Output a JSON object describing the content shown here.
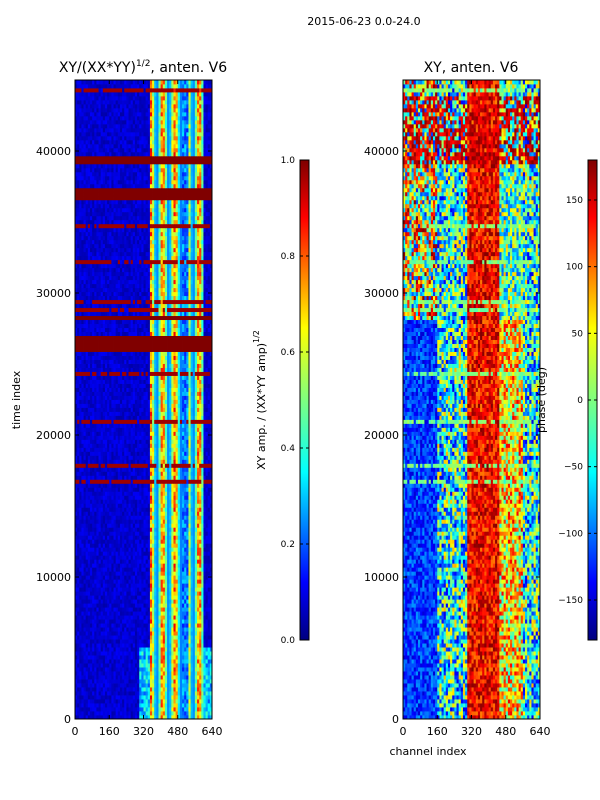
{
  "figure_title": "2015-06-23 0.0-24.0",
  "colors": {
    "jet": [
      "#00007f",
      "#0000ff",
      "#007fff",
      "#00ffff",
      "#7fff7f",
      "#ffff00",
      "#ff7f00",
      "#ff0000",
      "#7f0000"
    ]
  },
  "chart_data": [
    {
      "type": "heatmap",
      "title_main": "XY/(XX*YY)",
      "title_exp": "1/2",
      "title_suffix": ", anten. V6",
      "xlabel": "",
      "ylabel": "time index",
      "xlim": [
        0,
        640
      ],
      "ylim": [
        0,
        45000
      ],
      "xticks": [
        "0",
        "160",
        "320",
        "480",
        "640"
      ],
      "yticks": [
        "0",
        "10000",
        "20000",
        "30000",
        "40000"
      ],
      "colorbar": {
        "label_main": "XY amp. / (XX*YY amp)",
        "label_exp": "1/2",
        "range": [
          0.0,
          1.0
        ],
        "ticks": [
          "0.0",
          "0.2",
          "0.4",
          "0.6",
          "0.8",
          "1.0"
        ]
      },
      "flagged_time_bands": [
        [
          26000,
          27000
        ],
        [
          36500,
          37300
        ],
        [
          39200,
          39700
        ],
        [
          28000,
          28400
        ]
      ],
      "description_values": "mostly low amplitude (~0.05) below channel ~360; high amplitude (0.4-1.0) in channels ~360-600"
    },
    {
      "type": "heatmap",
      "title_main": "XY, anten. V6",
      "xlabel": "channel index",
      "ylabel": "",
      "xlim": [
        0,
        640
      ],
      "ylim": [
        0,
        45000
      ],
      "xticks": [
        "0",
        "160",
        "320",
        "480",
        "640"
      ],
      "yticks": [
        "0",
        "10000",
        "20000",
        "30000",
        "40000"
      ],
      "colorbar": {
        "label_main": "phase (deg)",
        "range": [
          -180,
          180
        ],
        "ticks": [
          "−150",
          "−100",
          "−50",
          "0",
          "50",
          "100",
          "150"
        ]
      },
      "description_values": "phase varies from -180 to 180 deg; red/positive region around channels 320-480"
    }
  ]
}
